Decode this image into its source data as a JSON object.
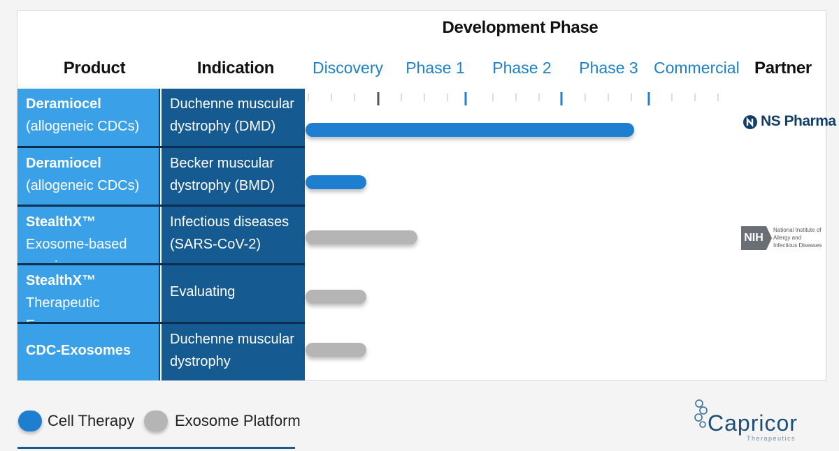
{
  "header": {
    "development_phase": "Development Phase",
    "product": "Product",
    "indication": "Indication",
    "partner": "Partner",
    "phases": [
      "Discovery",
      "Phase 1",
      "Phase 2",
      "Phase 3",
      "Commercial"
    ]
  },
  "rows": [
    {
      "product_bold": "Deramiocel",
      "product_sub": "(allogeneic CDCs)",
      "indication_line1": "Duchenne muscular",
      "indication_line2": "dystrophy (DMD)",
      "platform": "Cell Therapy",
      "progress": "Phase 3",
      "partner": "NS Pharma"
    },
    {
      "product_bold": "Deramiocel",
      "product_sub": "(allogeneic CDCs)",
      "indication_line1": "Becker muscular",
      "indication_line2": "dystrophy (BMD)",
      "platform": "Cell Therapy",
      "progress": "Discovery",
      "partner": ""
    },
    {
      "product_bold": "StealthX™",
      "product_sub": "Exosome-based vaccine",
      "indication_line1": "Infectious diseases",
      "indication_line2": "(SARS-CoV-2)",
      "platform": "Exosome Platform",
      "progress": "Phase 1",
      "partner": "NIH"
    },
    {
      "product_bold": "StealthX™",
      "product_sub": "Therapeutic Exosomes",
      "indication_line1": "Evaluating",
      "indication_line2": "",
      "platform": "Exosome Platform",
      "progress": "Discovery",
      "partner": ""
    },
    {
      "product_bold": "CDC-Exosomes",
      "product_sub": "",
      "indication_line1": "Duchenne muscular",
      "indication_line2": "dystrophy",
      "platform": "Exosome Platform",
      "progress": "Discovery",
      "partner": ""
    }
  ],
  "partners": {
    "ns_pharma": "NS Pharma",
    "nih_abbr": "NIH",
    "nih_line1": "National Institute of",
    "nih_line2": "Allergy and",
    "nih_line3": "Infectious Diseases"
  },
  "legend": {
    "cell_therapy": "Cell Therapy",
    "exosome_platform": "Exosome Platform"
  },
  "brand": {
    "name": "Capricor",
    "tagline": "Therapeutics"
  },
  "colors": {
    "cell_therapy": "#1e7fd1",
    "exosome_platform": "#b5b5b5",
    "product_cell": "#3aa0e8",
    "indication_cell": "#155a91",
    "phase_text": "#1e7fc9"
  }
}
